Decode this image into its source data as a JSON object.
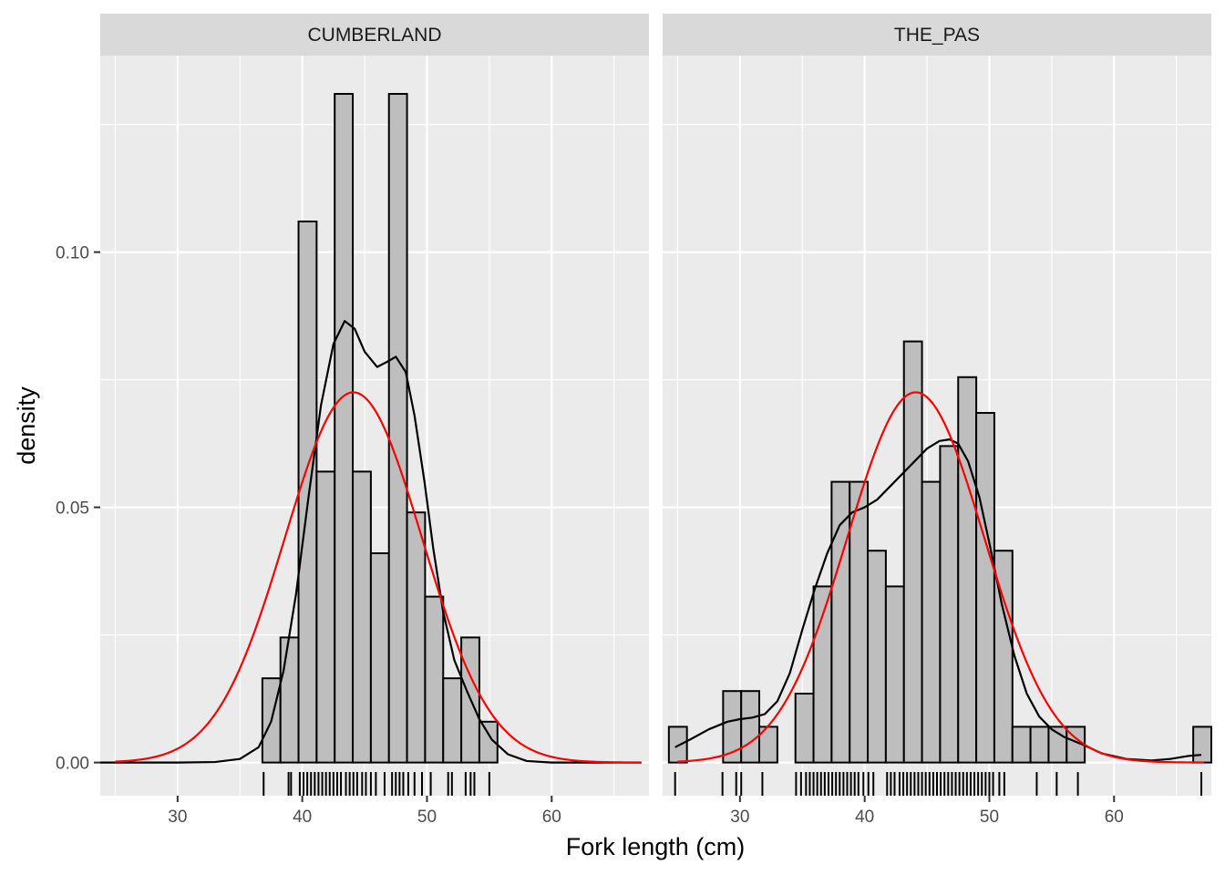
{
  "chart_data": {
    "type": "histogram",
    "xlabel": "Fork length (cm)",
    "ylabel": "density",
    "xlim": [
      23.8,
      67.8
    ],
    "ylim": [
      -0.0065,
      0.1385
    ],
    "x_ticks": [
      30,
      40,
      50,
      60
    ],
    "y_ticks": [
      0.0,
      0.05,
      0.1
    ],
    "y_tick_labels": [
      "0.00",
      "0.05",
      "0.10"
    ],
    "x_minor_ticks": [
      25,
      35,
      45,
      55,
      65
    ],
    "y_minor_ticks": [
      0.025,
      0.075,
      0.125
    ],
    "grid": true,
    "bin_width": 1.45,
    "colors": {
      "bar_fill": "#bebebe",
      "bar_stroke": "#000000",
      "kde": "#000000",
      "normal": "#ff0000",
      "panel_bg": "#ebebeb",
      "strip_bg": "#d9d9d9",
      "grid": "#ffffff"
    },
    "panels": [
      {
        "label": "CUMBERLAND",
        "histogram": [
          {
            "x0": 36.8,
            "x1": 38.25,
            "density": 0.0165
          },
          {
            "x0": 38.25,
            "x1": 39.7,
            "density": 0.0245
          },
          {
            "x0": 39.7,
            "x1": 41.15,
            "density": 0.106
          },
          {
            "x0": 41.15,
            "x1": 42.6,
            "density": 0.057
          },
          {
            "x0": 42.6,
            "x1": 44.05,
            "density": 0.131
          },
          {
            "x0": 44.05,
            "x1": 45.5,
            "density": 0.057
          },
          {
            "x0": 45.5,
            "x1": 46.95,
            "density": 0.041
          },
          {
            "x0": 46.95,
            "x1": 48.4,
            "density": 0.131
          },
          {
            "x0": 48.4,
            "x1": 49.85,
            "density": 0.049
          },
          {
            "x0": 49.85,
            "x1": 51.3,
            "density": 0.0325
          },
          {
            "x0": 51.3,
            "x1": 52.75,
            "density": 0.0165
          },
          {
            "x0": 52.75,
            "x1": 54.2,
            "density": 0.0245
          },
          {
            "x0": 54.2,
            "x1": 55.65,
            "density": 0.008
          }
        ],
        "kde": [
          [
            23.8,
            0.0
          ],
          [
            30,
            0.0
          ],
          [
            33,
            0.0001
          ],
          [
            35,
            0.0007
          ],
          [
            36.5,
            0.003
          ],
          [
            37.5,
            0.008
          ],
          [
            38.5,
            0.018
          ],
          [
            39.5,
            0.033
          ],
          [
            40.5,
            0.052
          ],
          [
            41.5,
            0.07
          ],
          [
            42.5,
            0.082
          ],
          [
            43.4,
            0.0865
          ],
          [
            44.2,
            0.085
          ],
          [
            45,
            0.0805
          ],
          [
            46,
            0.0775
          ],
          [
            46.8,
            0.0785
          ],
          [
            47.5,
            0.0795
          ],
          [
            48.3,
            0.0765
          ],
          [
            49,
            0.068
          ],
          [
            49.8,
            0.055
          ],
          [
            50.5,
            0.042
          ],
          [
            51.3,
            0.0295
          ],
          [
            52.2,
            0.02
          ],
          [
            53.2,
            0.014
          ],
          [
            54.2,
            0.0085
          ],
          [
            55.2,
            0.0045
          ],
          [
            56.5,
            0.0016
          ],
          [
            58,
            0.0003
          ],
          [
            60,
            0.0
          ],
          [
            67.2,
            0.0
          ]
        ],
        "normal_mean": 44.1,
        "normal_sd": 5.5,
        "normal_range": [
          25,
          67.2
        ],
        "rug": [
          36.9,
          38.9,
          39.1,
          39.8,
          40.1,
          40.4,
          40.7,
          41.0,
          41.3,
          41.6,
          41.9,
          42.2,
          42.5,
          42.8,
          43.1,
          43.5,
          43.8,
          44.1,
          44.4,
          44.8,
          45.1,
          45.5,
          45.9,
          46.6,
          47.2,
          47.5,
          47.8,
          48.1,
          48.5,
          49.0,
          49.6,
          50.3,
          51.7,
          52.0,
          53.1,
          53.5,
          53.8,
          55.0
        ]
      },
      {
        "label": "THE_PAS",
        "histogram": [
          {
            "x0": 24.3,
            "x1": 25.75,
            "density": 0.007
          },
          {
            "x0": 28.65,
            "x1": 30.1,
            "density": 0.014
          },
          {
            "x0": 30.1,
            "x1": 31.55,
            "density": 0.014
          },
          {
            "x0": 31.55,
            "x1": 33.0,
            "density": 0.007
          },
          {
            "x0": 34.45,
            "x1": 35.9,
            "density": 0.0135
          },
          {
            "x0": 35.9,
            "x1": 37.35,
            "density": 0.0345
          },
          {
            "x0": 37.35,
            "x1": 38.8,
            "density": 0.055
          },
          {
            "x0": 38.8,
            "x1": 40.25,
            "density": 0.055
          },
          {
            "x0": 40.25,
            "x1": 41.7,
            "density": 0.0415
          },
          {
            "x0": 41.7,
            "x1": 43.15,
            "density": 0.0345
          },
          {
            "x0": 43.15,
            "x1": 44.6,
            "density": 0.0825
          },
          {
            "x0": 44.6,
            "x1": 46.05,
            "density": 0.055
          },
          {
            "x0": 46.05,
            "x1": 47.5,
            "density": 0.062
          },
          {
            "x0": 47.5,
            "x1": 48.95,
            "density": 0.0755
          },
          {
            "x0": 48.95,
            "x1": 50.4,
            "density": 0.0685
          },
          {
            "x0": 50.4,
            "x1": 51.85,
            "density": 0.0415
          },
          {
            "x0": 51.85,
            "x1": 53.3,
            "density": 0.007
          },
          {
            "x0": 53.3,
            "x1": 54.75,
            "density": 0.007
          },
          {
            "x0": 54.75,
            "x1": 56.2,
            "density": 0.007
          },
          {
            "x0": 56.2,
            "x1": 57.65,
            "density": 0.007
          },
          {
            "x0": 66.35,
            "x1": 67.8,
            "density": 0.007
          }
        ],
        "kde": [
          [
            24.8,
            0.003
          ],
          [
            26,
            0.0045
          ],
          [
            27.5,
            0.0065
          ],
          [
            29,
            0.008
          ],
          [
            30,
            0.0085
          ],
          [
            31,
            0.0088
          ],
          [
            32,
            0.0095
          ],
          [
            33,
            0.012
          ],
          [
            34,
            0.0175
          ],
          [
            35,
            0.026
          ],
          [
            36,
            0.034
          ],
          [
            37,
            0.041
          ],
          [
            38,
            0.0465
          ],
          [
            39,
            0.049
          ],
          [
            40,
            0.05
          ],
          [
            41,
            0.0515
          ],
          [
            42,
            0.054
          ],
          [
            43,
            0.0565
          ],
          [
            44,
            0.059
          ],
          [
            45,
            0.0615
          ],
          [
            46,
            0.063
          ],
          [
            46.8,
            0.0633
          ],
          [
            47.5,
            0.0625
          ],
          [
            48.3,
            0.059
          ],
          [
            49.2,
            0.052
          ],
          [
            50,
            0.043
          ],
          [
            51,
            0.031
          ],
          [
            52,
            0.021
          ],
          [
            53,
            0.0135
          ],
          [
            54,
            0.009
          ],
          [
            55,
            0.0065
          ],
          [
            56,
            0.005
          ],
          [
            57.5,
            0.0035
          ],
          [
            59,
            0.0018
          ],
          [
            61,
            0.0007
          ],
          [
            63,
            0.0004
          ],
          [
            64.5,
            0.0007
          ],
          [
            66,
            0.0013
          ],
          [
            67,
            0.0015
          ]
        ],
        "normal_mean": 44.1,
        "normal_sd": 5.5,
        "normal_range": [
          25,
          67.2
        ],
        "rug": [
          24.8,
          28.6,
          29.7,
          30.1,
          31.8,
          34.5,
          34.9,
          35.3,
          35.6,
          35.9,
          36.2,
          36.5,
          36.8,
          37.1,
          37.4,
          37.7,
          38.0,
          38.3,
          38.6,
          38.9,
          39.2,
          39.5,
          39.9,
          40.3,
          40.7,
          41.8,
          42.1,
          42.4,
          42.8,
          43.1,
          43.4,
          43.7,
          44.0,
          44.3,
          44.6,
          44.9,
          45.2,
          45.5,
          45.8,
          46.1,
          46.4,
          46.7,
          47.0,
          47.3,
          47.6,
          47.9,
          48.2,
          48.5,
          48.8,
          49.1,
          49.4,
          49.7,
          50.0,
          50.3,
          50.8,
          51.2,
          53.8,
          55.4,
          57.1,
          67.0
        ]
      }
    ]
  }
}
